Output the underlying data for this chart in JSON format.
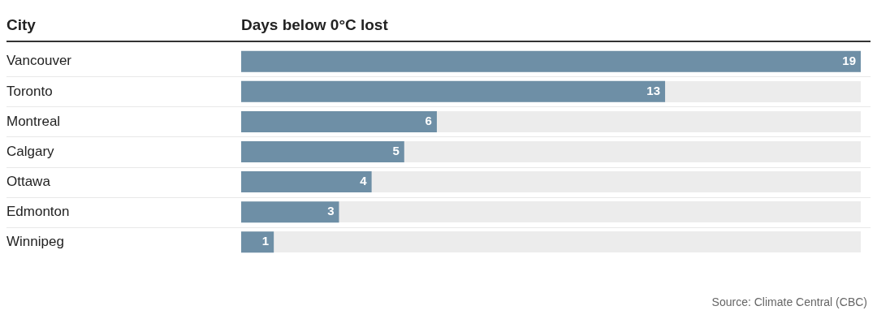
{
  "chart_data": {
    "type": "bar",
    "orientation": "horizontal",
    "ylabel": "City",
    "xlabel": "Days below 0°C lost",
    "categories": [
      "Vancouver",
      "Toronto",
      "Montreal",
      "Calgary",
      "Ottawa",
      "Edmonton",
      "Winnipeg"
    ],
    "values": [
      19,
      13,
      6,
      5,
      4,
      3,
      1
    ],
    "color": "#6e8fa6",
    "data_labels": true,
    "legend": false,
    "annotations": [
      "Source: Climate Central (CBC)"
    ]
  }
}
